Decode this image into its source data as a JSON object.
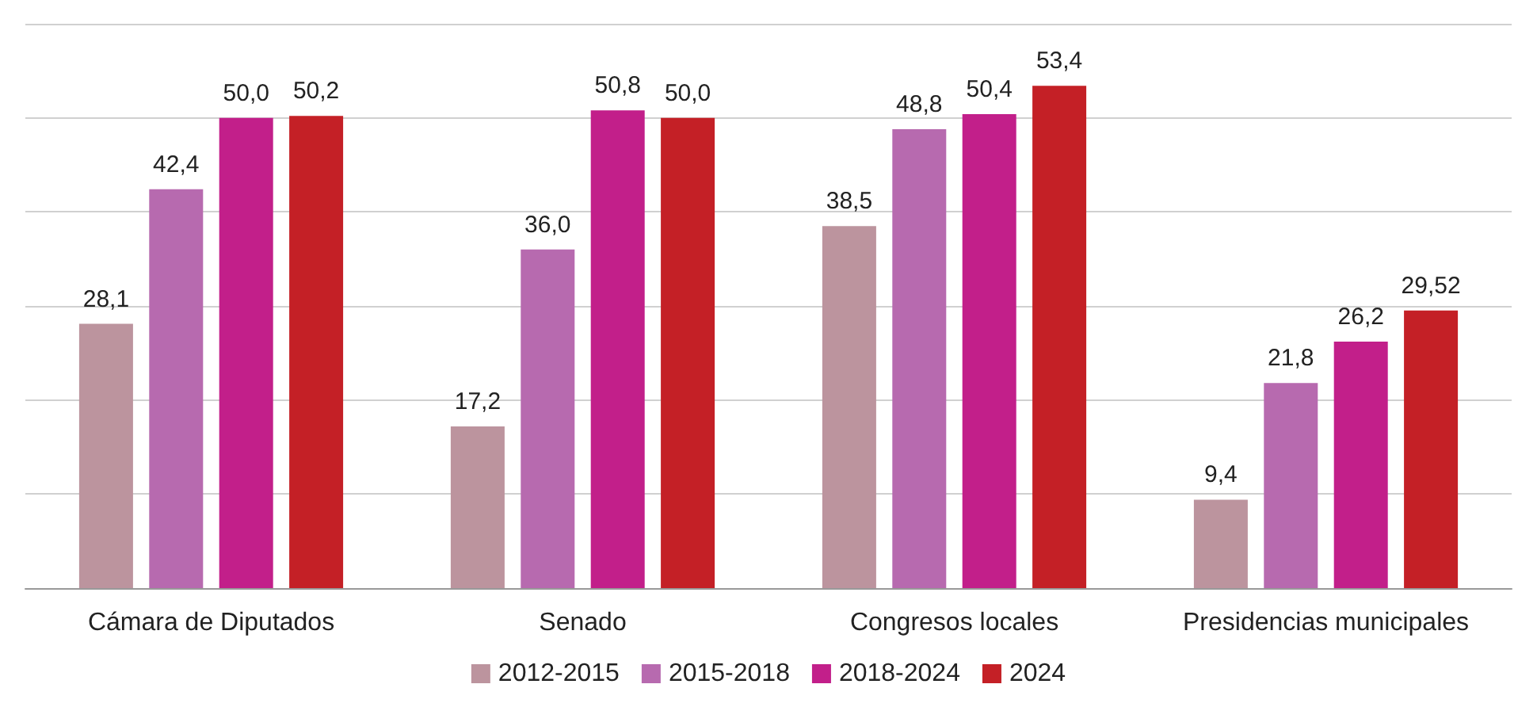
{
  "chart_data": {
    "type": "bar",
    "categories": [
      "Cámara de Diputados",
      "Senado",
      "Congresos locales",
      "Presidencias municipales"
    ],
    "series": [
      {
        "name": "2012-2015",
        "color": "#bc949e",
        "values": [
          28.1,
          17.2,
          38.5,
          9.4
        ],
        "value_labels": [
          "28,1",
          "17,2",
          "38,5",
          "9,4"
        ]
      },
      {
        "name": "2015-2018",
        "color": "#b76aaf",
        "values": [
          42.4,
          36.0,
          48.8,
          21.8
        ],
        "value_labels": [
          "42,4",
          "36,0",
          "48,8",
          "21,8"
        ]
      },
      {
        "name": "2018-2024",
        "color": "#c21f8a",
        "values": [
          50.0,
          50.8,
          50.4,
          26.2
        ],
        "value_labels": [
          "50,0",
          "50,8",
          "50,4",
          "26,2"
        ]
      },
      {
        "name": "2024",
        "color": "#c42026",
        "values": [
          50.2,
          50.0,
          53.4,
          29.52
        ],
        "value_labels": [
          "50,2",
          "50,0",
          "53,4",
          "29,52"
        ]
      }
    ],
    "ylim": [
      0,
      60
    ],
    "yticks": [
      {
        "value": 0,
        "label": null
      },
      {
        "value": 10,
        "label": null
      },
      {
        "value": 20,
        "label": null
      },
      {
        "value": 30,
        "label": null
      },
      {
        "value": 40,
        "label": null
      },
      {
        "value": 50,
        "label": null
      },
      {
        "value": 60,
        "label": null
      }
    ],
    "tick_labels": "x",
    "grid": "y",
    "legend": "bottom"
  }
}
